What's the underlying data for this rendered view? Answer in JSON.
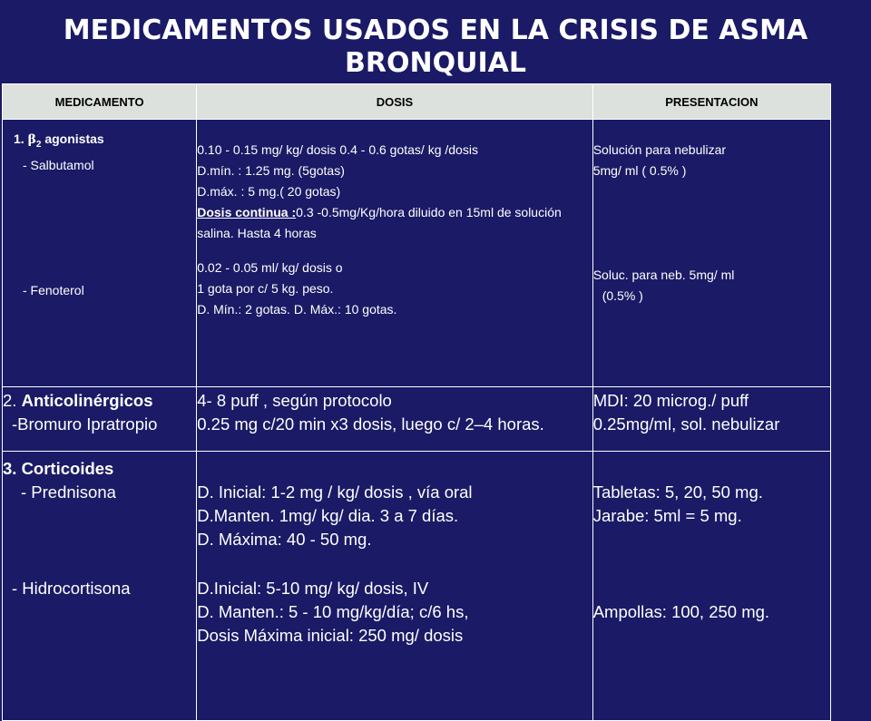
{
  "title": {
    "line1": "MEDICAMENTOS USADOS EN LA CRISIS DE ASMA",
    "line2": "BRONQUIAL"
  },
  "headers": [
    "MEDICAMENTO",
    "DOSIS",
    "PRESENTACION"
  ],
  "row1": {
    "group_num": "1.",
    "group_beta": "β",
    "group_sub": "2",
    "group_name": "agonistas",
    "drug1": "- Salbutamol",
    "drug1_dose": [
      "0.10 - 0.15 mg/ kg/ dosis    0.4 - 0.6 gotas/ kg /dosis",
      "D.mín. : 1.25 mg. (5gotas)",
      "D.máx. : 5 mg.( 20 gotas)"
    ],
    "drug1_continua_label": "Dosis  continua :",
    "drug1_continua_text": "0.3 -0.5mg/Kg/hora diluido en 15ml de solución  salina. Hasta 4 horas",
    "drug1_pres": [
      "Solución para nebulizar",
      "5mg/ ml ( 0.5% )"
    ],
    "drug2": "- Fenoterol",
    "drug2_dose": [
      "0.02 - 0.05 ml/ kg/ dosis  o",
      "1 gota por c/ 5 kg.  peso.",
      "D. Mín.: 2 gotas.    D. Máx.: 10 gotas."
    ],
    "drug2_pres": [
      "Soluc. para neb. 5mg/ ml",
      "(0.5% )"
    ]
  },
  "row2": {
    "group_num": "2.",
    "group_name": "Anticolinérgicos",
    "drug": "-Bromuro Ipratropio",
    "dose": [
      "4- 8  puff , según protocolo",
      "0.25 mg c/20 min x3 dosis, luego c/ 2–4 horas."
    ],
    "pres": [
      "MDI: 20 microg./ puff",
      "0.25mg/ml, sol. nebulizar"
    ]
  },
  "row3": {
    "group_label": "3.  Corticoides",
    "drug1": "- Prednisona",
    "drug1_dose": [
      "D. Inicial: 1-2 mg / kg/ dosis , vía oral",
      "D.Manten. 1mg/ kg/ dia.  3 a 7 días.",
      "D. Máxima: 40 - 50 mg."
    ],
    "drug1_pres": [
      "Tabletas: 5, 20, 50 mg.",
      "Jarabe: 5ml = 5 mg."
    ],
    "drug2": "- Hidrocortisona",
    "drug2_dose": [
      "D.Inicial: 5-10 mg/ kg/ dosis, IV",
      "D. Manten.: 5 - 10 mg/kg/día; c/6 hs,",
      "Dosis Máxima inicial: 250 mg/ dosis"
    ],
    "drug2_pres": "Ampollas: 100, 250 mg."
  }
}
